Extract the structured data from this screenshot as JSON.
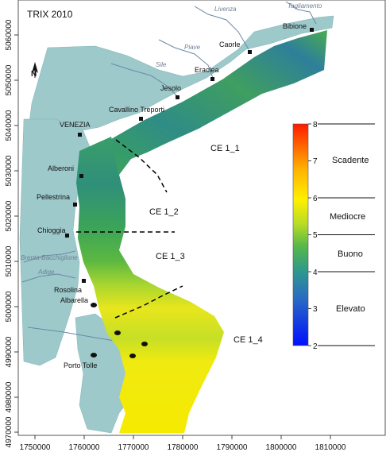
{
  "title": "TRIX 2010",
  "north_label": "N",
  "rivers": [
    {
      "name": "Livenza"
    },
    {
      "name": "Tagliamento"
    },
    {
      "name": "Piave"
    },
    {
      "name": "Sile"
    },
    {
      "name": "Brenta-Bacchiglione"
    },
    {
      "name": "Adige"
    }
  ],
  "towns": [
    {
      "name": "Bibione"
    },
    {
      "name": "Caorle"
    },
    {
      "name": "Eraclea"
    },
    {
      "name": "Jesolo"
    },
    {
      "name": "Cavallino Treporti"
    },
    {
      "name": "VENEZIA"
    },
    {
      "name": "Alberoni"
    },
    {
      "name": "Pellestrina"
    },
    {
      "name": "Chioggia"
    },
    {
      "name": "Rosolina"
    },
    {
      "name": "Albarella"
    },
    {
      "name": "Porto Tolle"
    }
  ],
  "zones": [
    "CE 1_1",
    "CE 1_2",
    "CE 1_3",
    "CE 1_4"
  ],
  "x_ticks": [
    "1750000",
    "1760000",
    "1770000",
    "1780000",
    "1790000",
    "1800000",
    "1810000"
  ],
  "y_ticks": [
    "5060000",
    "5050000",
    "5040000",
    "5030000",
    "5020000",
    "5010000",
    "5000000",
    "4990000",
    "4980000",
    "4970000"
  ],
  "legend": {
    "scale_ticks": [
      "8",
      "7",
      "6",
      "5",
      "4",
      "3",
      "2"
    ],
    "classes": [
      "Scadente",
      "Mediocre",
      "Buono",
      "Elevato"
    ]
  },
  "colors": {
    "land": "#9dc9cb",
    "river": "#6b88a6",
    "scale": [
      "#0000ff",
      "#2f7fa8",
      "#3aa84a",
      "#e6e81a",
      "#ffd000",
      "#ff3000"
    ]
  }
}
